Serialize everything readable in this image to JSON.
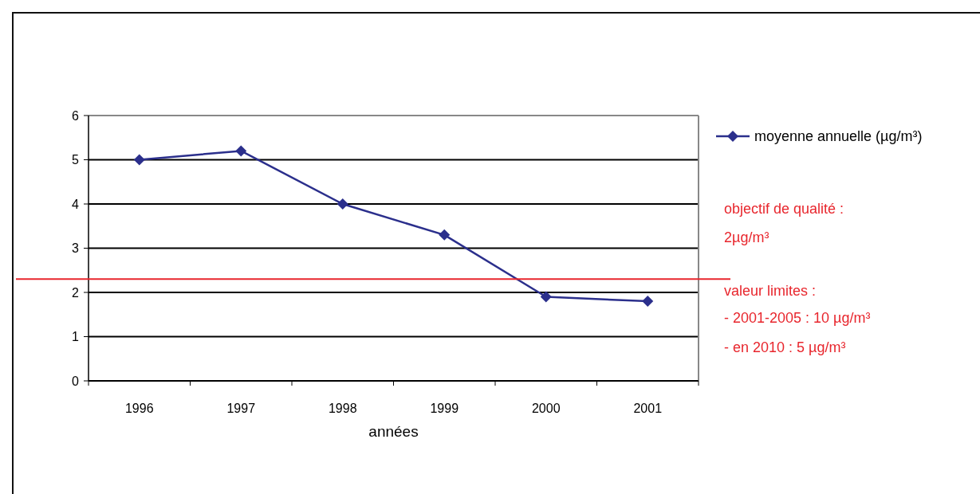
{
  "chart_data": {
    "type": "line",
    "xlabel": "années",
    "categories": [
      "1996",
      "1997",
      "1998",
      "1999",
      "2000",
      "2001"
    ],
    "series": [
      {
        "name": "moyenne annuelle (µg/m³)",
        "color": "#2b2f8c",
        "values": [
          5.0,
          5.2,
          4.0,
          3.3,
          1.9,
          1.8
        ]
      }
    ],
    "ylim": [
      0,
      6
    ],
    "yticks": [
      0,
      1,
      2,
      3,
      4,
      5,
      6
    ],
    "grid": "y",
    "legend": "right",
    "marker": "diamond",
    "line_style": "solid",
    "ref_lines": [
      {
        "axis": "y",
        "value": 2.3,
        "color": "#e8262d"
      }
    ],
    "annotations": [
      "objectif de qualité :",
      "2µg/m³",
      "valeur limites  :",
      "- 2001-2005 : 10 µg/m³",
      "-  en 2010 : 5 µg/m³"
    ]
  }
}
